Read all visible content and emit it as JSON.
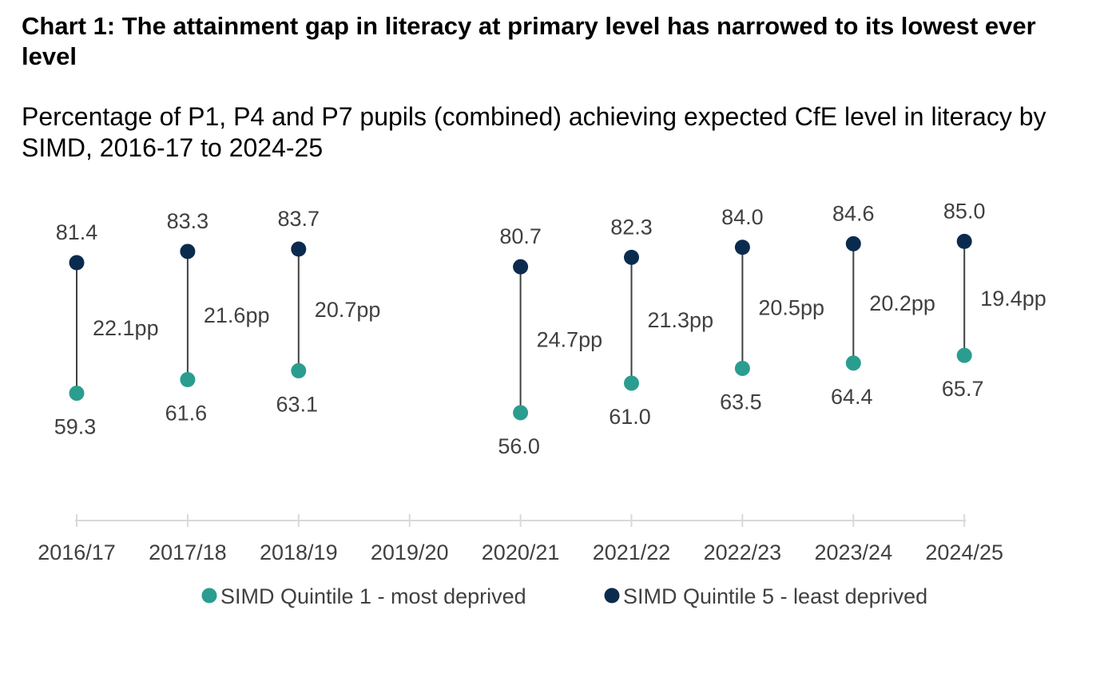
{
  "title": "Chart 1: The attainment gap in literacy at primary level has narrowed to its lowest ever level",
  "subtitle": "Percentage of P1, P4 and P7 pupils (combined) achieving expected CfE level in literacy by SIMD, 2016-17 to 2024-25",
  "colors": {
    "q1": "#2a9d8f",
    "q5": "#0b2b4e",
    "connector": "#404040",
    "axis": "#d9d9d9",
    "text": "#404040"
  },
  "chart_data": {
    "type": "scatter",
    "categories": [
      "2016/17",
      "2017/18",
      "2018/19",
      "2019/20",
      "2020/21",
      "2021/22",
      "2022/23",
      "2023/24",
      "2024/25"
    ],
    "series": [
      {
        "name": "SIMD Quintile 1 - most deprived",
        "color": "#2a9d8f",
        "values": [
          59.3,
          61.6,
          63.1,
          null,
          56.0,
          61.0,
          63.5,
          64.4,
          65.7
        ]
      },
      {
        "name": "SIMD Quintile 5 - least deprived",
        "color": "#0b2b4e",
        "values": [
          81.4,
          83.3,
          83.7,
          null,
          80.7,
          82.3,
          84.0,
          84.6,
          85.0
        ]
      }
    ],
    "value_labels": {
      "q1": [
        "59.3",
        "61.6",
        "63.1",
        "",
        "56.0",
        "61.0",
        "63.5",
        "64.4",
        "65.7"
      ],
      "q5": [
        "81.4",
        "83.3",
        "83.7",
        "",
        "80.7",
        "82.3",
        "84.0",
        "84.6",
        "85.0"
      ]
    },
    "gap_labels": [
      "22.1pp",
      "21.6pp",
      "20.7pp",
      "",
      "24.7pp",
      "21.3pp",
      "20.5pp",
      "20.2pp",
      "19.4pp"
    ],
    "ylim": [
      42,
      92
    ],
    "grid": false,
    "y_axis_visible": false,
    "legend_position": "bottom"
  }
}
